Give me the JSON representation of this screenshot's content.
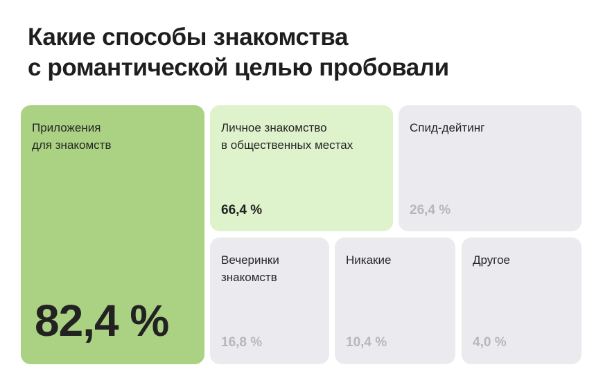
{
  "title": {
    "line1": "Какие способы знакомства",
    "line2": "с романтической целью пробовали"
  },
  "chart_data": {
    "type": "treemap",
    "title": "Какие способы знакомства с романтической целью пробовали",
    "unit": "%",
    "items": [
      {
        "label_lines": [
          "Приложения",
          "для знакомств"
        ],
        "value": 82.4,
        "value_label": "82,4 %",
        "color": "#abd183"
      },
      {
        "label_lines": [
          "Личное знакомство",
          "в общественных местах"
        ],
        "value": 66.4,
        "value_label": "66,4 %",
        "color": "#def2cc"
      },
      {
        "label_lines": [
          "Спид-дейтинг"
        ],
        "value": 26.4,
        "value_label": "26,4 %",
        "color": "#ebebef"
      },
      {
        "label_lines": [
          "Вечеринки",
          "знакомств"
        ],
        "value": 16.8,
        "value_label": "16,8 %",
        "color": "#ebebef"
      },
      {
        "label_lines": [
          "Никакие"
        ],
        "value": 10.4,
        "value_label": "10,4 %",
        "color": "#ebebef"
      },
      {
        "label_lines": [
          "Другое"
        ],
        "value": 4.0,
        "value_label": "4,0 %",
        "color": "#ebebef"
      }
    ]
  }
}
